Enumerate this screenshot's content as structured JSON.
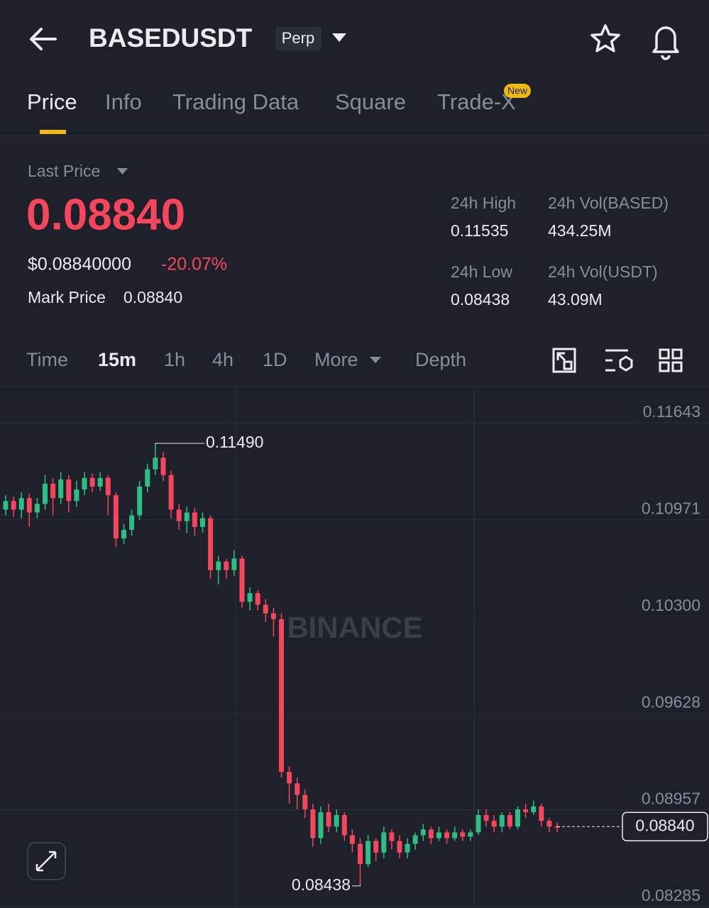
{
  "header": {
    "symbol": "BASEDUSDT",
    "badge": "Perp"
  },
  "tabs": [
    "Price",
    "Info",
    "Trading Data",
    "Square",
    "Trade-X"
  ],
  "tab_badge": "New",
  "ticker": {
    "last_price_label": "Last Price",
    "last_price": "0.08840",
    "usd_price": "$0.08840000",
    "change": "-20.07%",
    "mark_price_label": "Mark Price",
    "mark_price": "0.08840",
    "stats": [
      {
        "label": "24h High",
        "value": "0.11535"
      },
      {
        "label": "24h Vol(BASED)",
        "value": "434.25M"
      },
      {
        "label": "24h Low",
        "value": "0.08438"
      },
      {
        "label": "24h Vol(USDT)",
        "value": "43.09M"
      }
    ]
  },
  "intervals": [
    "Time",
    "15m",
    "1h",
    "4h",
    "1D",
    "More",
    "Depth"
  ],
  "chart_data": {
    "type": "candlestick",
    "watermark": "BINANCE",
    "up_color": "#2ebd85",
    "down_color": "#f6465d",
    "ylim": [
      0.08275,
      0.11889
    ],
    "yticks": [
      0.11643,
      0.10971,
      {
        "value": 0.103,
        "label": "0.10300"
      },
      0.09628,
      0.08957,
      0.08285
    ],
    "high_label": "0.11490",
    "low_label": "0.08438",
    "last_label": "0.08840",
    "ohlc": [
      [
        0.1104,
        0.1114,
        0.11,
        0.111
      ],
      [
        0.111,
        0.1113,
        0.1099,
        0.1104
      ],
      [
        0.1104,
        0.1116,
        0.1098,
        0.1112
      ],
      [
        0.1112,
        0.1115,
        0.1092,
        0.1102
      ],
      [
        0.1102,
        0.1112,
        0.1098,
        0.1108
      ],
      [
        0.1108,
        0.1128,
        0.1104,
        0.1122
      ],
      [
        0.1122,
        0.1126,
        0.11,
        0.1112
      ],
      [
        0.1112,
        0.113,
        0.1108,
        0.1125
      ],
      [
        0.1125,
        0.1128,
        0.1102,
        0.111
      ],
      [
        0.111,
        0.1124,
        0.1106,
        0.1118
      ],
      [
        0.1118,
        0.113,
        0.1114,
        0.1126
      ],
      [
        0.1126,
        0.1129,
        0.1116,
        0.112
      ],
      [
        0.112,
        0.113,
        0.1117,
        0.1126
      ],
      [
        0.1126,
        0.1128,
        0.11,
        0.1114
      ],
      [
        0.1114,
        0.1116,
        0.1078,
        0.1084
      ],
      [
        0.1084,
        0.1094,
        0.108,
        0.109
      ],
      [
        0.109,
        0.1104,
        0.1086,
        0.11
      ],
      [
        0.11,
        0.1124,
        0.1097,
        0.112
      ],
      [
        0.112,
        0.1136,
        0.1116,
        0.1132
      ],
      [
        0.1132,
        0.1149,
        0.1128,
        0.114
      ],
      [
        0.114,
        0.1144,
        0.1124,
        0.1128
      ],
      [
        0.1128,
        0.1131,
        0.1098,
        0.1104
      ],
      [
        0.1104,
        0.1108,
        0.109,
        0.1096
      ],
      [
        0.1096,
        0.1106,
        0.1088,
        0.1102
      ],
      [
        0.1102,
        0.1105,
        0.1086,
        0.1092
      ],
      [
        0.1092,
        0.1102,
        0.1088,
        0.1098
      ],
      [
        0.1098,
        0.11,
        0.1056,
        0.1062
      ],
      [
        0.1062,
        0.1072,
        0.1052,
        0.1068
      ],
      [
        0.1068,
        0.107,
        0.1056,
        0.1062
      ],
      [
        0.1062,
        0.1076,
        0.1058,
        0.107
      ],
      [
        0.107,
        0.1072,
        0.1036,
        0.104
      ],
      [
        0.104,
        0.105,
        0.1034,
        0.1046
      ],
      [
        0.1046,
        0.1048,
        0.1034,
        0.1038
      ],
      [
        0.1038,
        0.1042,
        0.1026,
        0.1032
      ],
      [
        0.1032,
        0.1036,
        0.1016,
        0.1028
      ],
      [
        0.1028,
        0.1032,
        0.0918,
        0.0922
      ],
      [
        0.0922,
        0.0926,
        0.09,
        0.0914
      ],
      [
        0.0914,
        0.0918,
        0.0896,
        0.0906
      ],
      [
        0.0906,
        0.091,
        0.089,
        0.0896
      ],
      [
        0.0896,
        0.09,
        0.087,
        0.0876
      ],
      [
        0.0876,
        0.0898,
        0.0872,
        0.0894
      ],
      [
        0.0894,
        0.09,
        0.088,
        0.0884
      ],
      [
        0.0884,
        0.0896,
        0.088,
        0.0892
      ],
      [
        0.0892,
        0.0894,
        0.0874,
        0.0878
      ],
      [
        0.0878,
        0.0882,
        0.0866,
        0.0872
      ],
      [
        0.0872,
        0.0876,
        0.08438,
        0.0858
      ],
      [
        0.0858,
        0.0878,
        0.0856,
        0.0874
      ],
      [
        0.0874,
        0.0876,
        0.086,
        0.0866
      ],
      [
        0.0866,
        0.0884,
        0.0862,
        0.088
      ],
      [
        0.088,
        0.0882,
        0.0868,
        0.0874
      ],
      [
        0.0874,
        0.0878,
        0.0862,
        0.0866
      ],
      [
        0.0866,
        0.0876,
        0.0862,
        0.0872
      ],
      [
        0.0872,
        0.088,
        0.0868,
        0.0878
      ],
      [
        0.0878,
        0.0886,
        0.0874,
        0.0882
      ],
      [
        0.0882,
        0.0884,
        0.0872,
        0.0876
      ],
      [
        0.0876,
        0.0884,
        0.0874,
        0.088
      ],
      [
        0.088,
        0.0882,
        0.0872,
        0.0876
      ],
      [
        0.0876,
        0.0884,
        0.0874,
        0.088
      ],
      [
        0.088,
        0.0882,
        0.0874,
        0.0877
      ],
      [
        0.0877,
        0.0882,
        0.0874,
        0.088
      ],
      [
        0.088,
        0.0896,
        0.0878,
        0.0892
      ],
      [
        0.0892,
        0.0896,
        0.0884,
        0.0888
      ],
      [
        0.0888,
        0.0892,
        0.088,
        0.0884
      ],
      [
        0.0884,
        0.0894,
        0.088,
        0.0892
      ],
      [
        0.0892,
        0.0894,
        0.0882,
        0.0884
      ],
      [
        0.0884,
        0.0898,
        0.0882,
        0.0896
      ],
      [
        0.0896,
        0.09,
        0.089,
        0.0894
      ],
      [
        0.0894,
        0.0902,
        0.0892,
        0.0898
      ],
      [
        0.0898,
        0.09,
        0.0884,
        0.0888
      ],
      [
        0.0888,
        0.089,
        0.088,
        0.0884
      ],
      [
        0.0884,
        0.0887,
        0.088,
        0.0884
      ]
    ]
  }
}
